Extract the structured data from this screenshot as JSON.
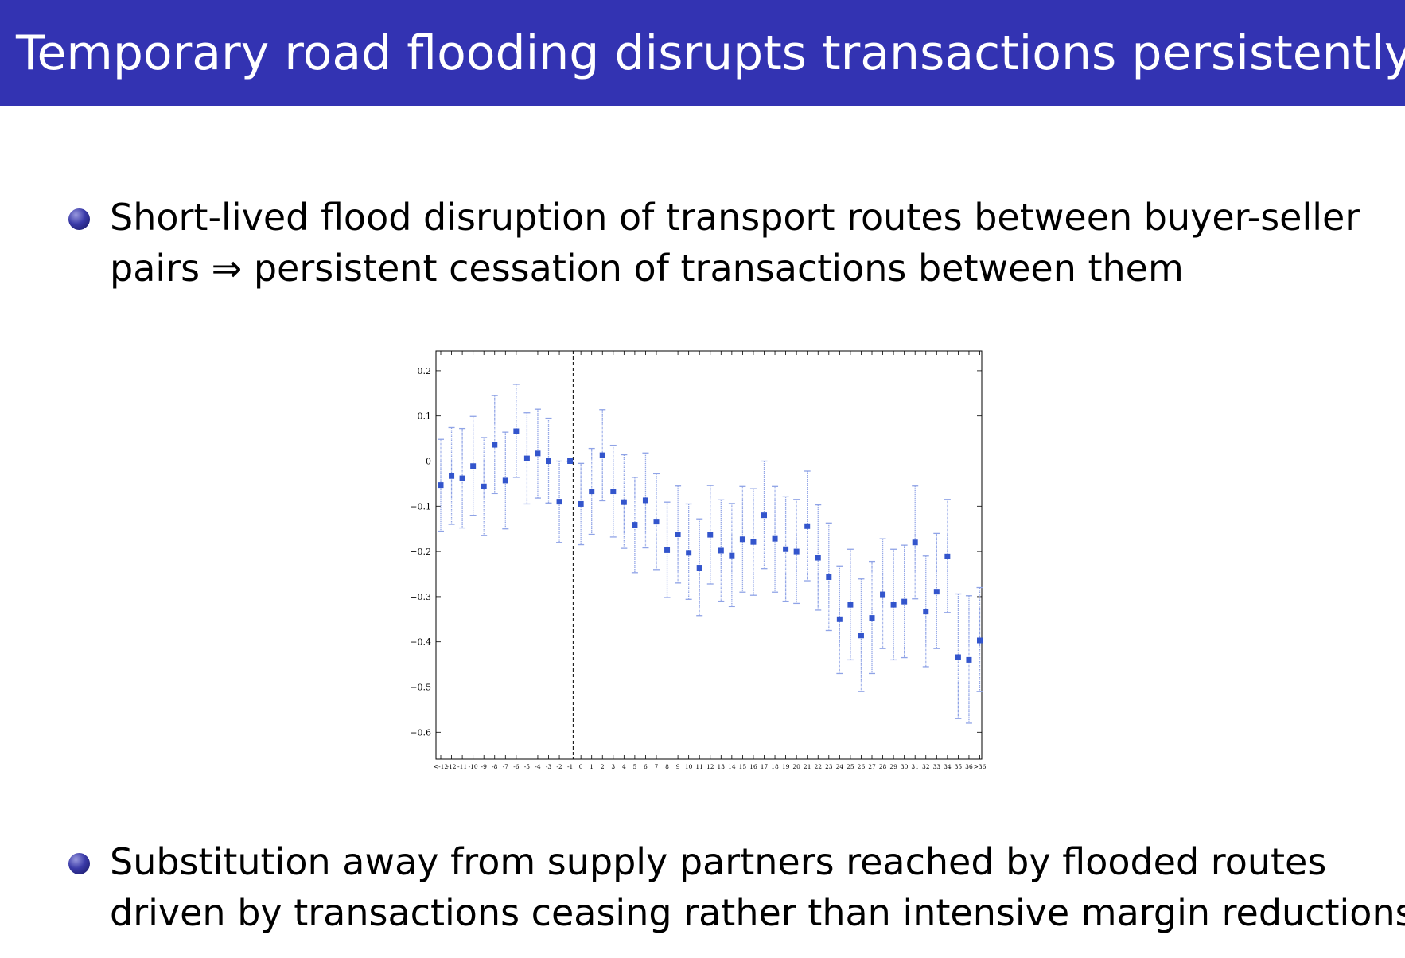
{
  "slide": {
    "title": "Temporary road flooding disrupts transactions persistently",
    "bullets": [
      {
        "lines": [
          "Short-lived flood disruption of transport routes between buyer-seller",
          "pairs ⇒ persistent cessation of transactions between them"
        ]
      },
      {
        "lines": [
          "Substitution away from supply partners reached by flooded routes",
          "driven by transactions ceasing rather than intensive margin reductions"
        ]
      }
    ]
  },
  "colors": {
    "header_bg": "#3333b2",
    "header_text": "#ffffff",
    "marker": "#3355cc",
    "errorbar": "#8fa3e6"
  },
  "chart_data": {
    "type": "scatter",
    "subtype": "event-study coefficients with 95% confidence intervals",
    "title": "",
    "xlabel": "",
    "ylabel": "",
    "ylim": [
      -0.66,
      0.2
    ],
    "yticks": [
      0.2,
      0.1,
      0,
      -0.1,
      -0.2,
      -0.3,
      -0.4,
      -0.5,
      -0.6
    ],
    "ytick_labels": [
      "0.2",
      "0.1",
      "0",
      "−0.1",
      "−0.2",
      "−0.3",
      "−0.4",
      "−0.5",
      "−0.6"
    ],
    "reference_lines": {
      "horizontal_y": 0,
      "vertical_after_category": "-1"
    },
    "grid": false,
    "categories": [
      "<-12",
      "-12",
      "-11",
      "-10",
      "-9",
      "-8",
      "-7",
      "-6",
      "-5",
      "-4",
      "-3",
      "-2",
      "-1",
      "0",
      "1",
      "2",
      "3",
      "4",
      "5",
      "6",
      "7",
      "8",
      "9",
      "10",
      "11",
      "12",
      "13",
      "14",
      "15",
      "16",
      "17",
      "18",
      "19",
      "20",
      "21",
      "22",
      "23",
      "24",
      "25",
      "26",
      "27",
      "28",
      "29",
      "30",
      "31",
      "32",
      "33",
      "34",
      "35",
      "36",
      ">36"
    ],
    "estimates": [
      -0.053,
      -0.033,
      -0.038,
      -0.011,
      -0.056,
      0.036,
      -0.043,
      0.066,
      0.006,
      0.017,
      0.0,
      -0.09,
      0.0,
      -0.095,
      -0.067,
      0.013,
      -0.067,
      -0.091,
      -0.141,
      -0.087,
      -0.134,
      -0.197,
      -0.162,
      -0.203,
      -0.236,
      -0.163,
      -0.198,
      -0.209,
      -0.173,
      -0.179,
      -0.12,
      -0.172,
      -0.195,
      -0.2,
      -0.144,
      -0.214,
      -0.257,
      -0.35,
      -0.318,
      -0.386,
      -0.347,
      -0.295,
      -0.318,
      -0.311,
      -0.18,
      -0.333,
      -0.289,
      -0.211,
      -0.434,
      -0.44,
      -0.397
    ],
    "ci_lower": [
      -0.155,
      -0.14,
      -0.148,
      -0.12,
      -0.165,
      -0.072,
      -0.15,
      -0.036,
      -0.095,
      -0.082,
      -0.093,
      -0.18,
      -0.001,
      -0.185,
      -0.162,
      -0.088,
      -0.168,
      -0.193,
      -0.247,
      -0.192,
      -0.24,
      -0.302,
      -0.27,
      -0.306,
      -0.342,
      -0.272,
      -0.31,
      -0.322,
      -0.29,
      -0.297,
      -0.238,
      -0.29,
      -0.31,
      -0.315,
      -0.265,
      -0.33,
      -0.375,
      -0.47,
      -0.44,
      -0.51,
      -0.47,
      -0.415,
      -0.44,
      -0.435,
      -0.305,
      -0.455,
      -0.415,
      -0.335,
      -0.57,
      -0.58,
      -0.51
    ],
    "ci_upper": [
      0.048,
      0.074,
      0.072,
      0.099,
      0.052,
      0.145,
      0.064,
      0.17,
      0.107,
      0.115,
      0.095,
      0.0,
      0.0,
      -0.005,
      0.028,
      0.114,
      0.035,
      0.014,
      -0.036,
      0.018,
      -0.028,
      -0.091,
      -0.055,
      -0.095,
      -0.128,
      -0.054,
      -0.086,
      -0.094,
      -0.056,
      -0.061,
      0.0,
      -0.056,
      -0.079,
      -0.085,
      -0.022,
      -0.097,
      -0.137,
      -0.232,
      -0.195,
      -0.261,
      -0.222,
      -0.172,
      -0.195,
      -0.186,
      -0.055,
      -0.21,
      -0.16,
      -0.085,
      -0.294,
      -0.298,
      -0.28
    ]
  }
}
